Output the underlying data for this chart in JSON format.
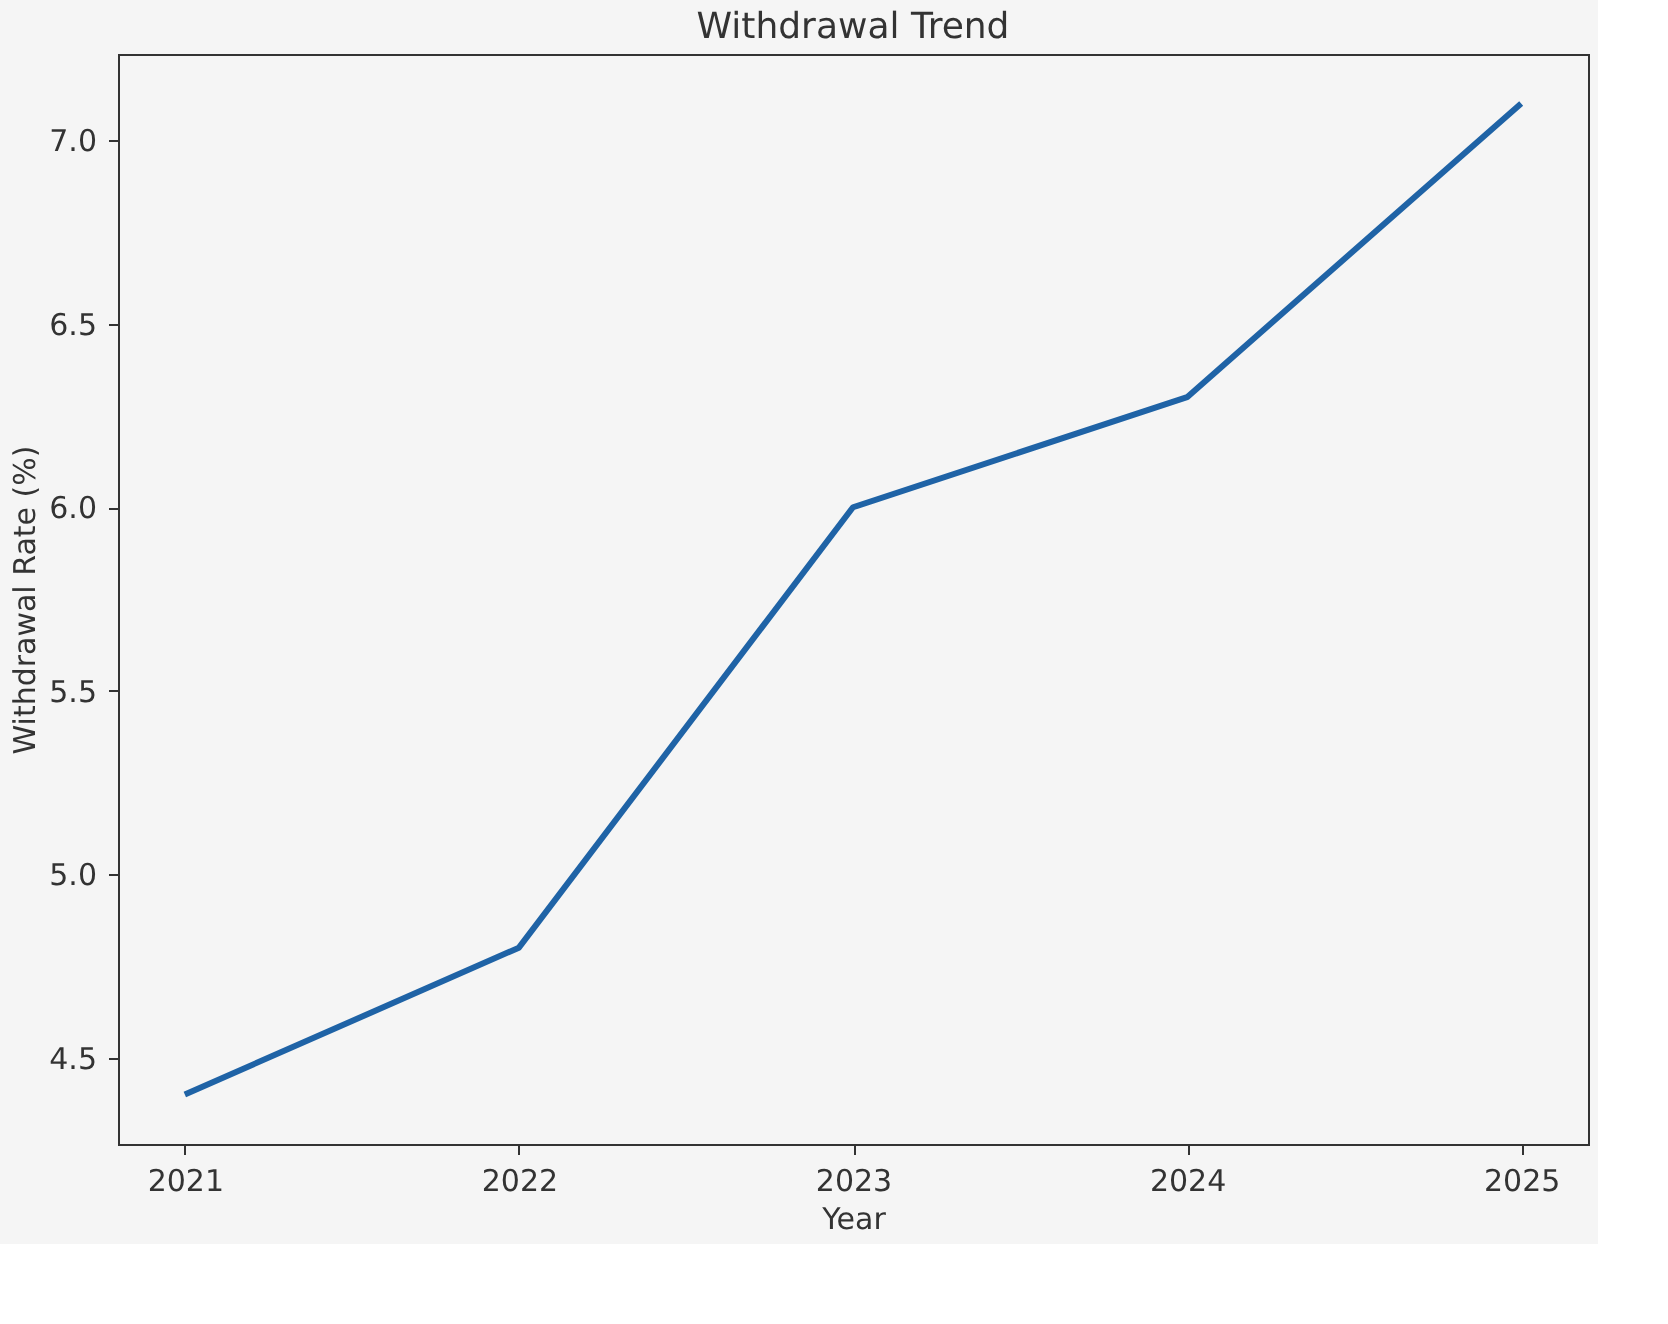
{
  "chart_data": {
    "type": "line",
    "title": "Withdrawal Trend",
    "xlabel": "Year",
    "ylabel": "Withdrawal Rate (%)",
    "x": [
      2021,
      2022,
      2023,
      2024,
      2025
    ],
    "series": [
      {
        "color": "#1f63a6",
        "values": [
          4.4,
          4.8,
          6.0,
          6.3,
          7.1
        ]
      }
    ],
    "xlim": [
      2020.8,
      2025.2
    ],
    "xticks": [
      2021,
      2022,
      2023,
      2024,
      2025
    ],
    "ylim": [
      4.265,
      7.235
    ],
    "yticks": [
      {
        "value": 4.5,
        "label": "4.5"
      },
      {
        "value": 5.0,
        "label": "5.0"
      },
      {
        "value": 5.5,
        "label": "5.5"
      },
      {
        "value": 6.0,
        "label": "6.0"
      },
      {
        "value": 6.5,
        "label": "6.5"
      },
      {
        "value": 7.0,
        "label": "7.0"
      }
    ],
    "grid": false,
    "marker": "none",
    "line_style": "solid"
  }
}
